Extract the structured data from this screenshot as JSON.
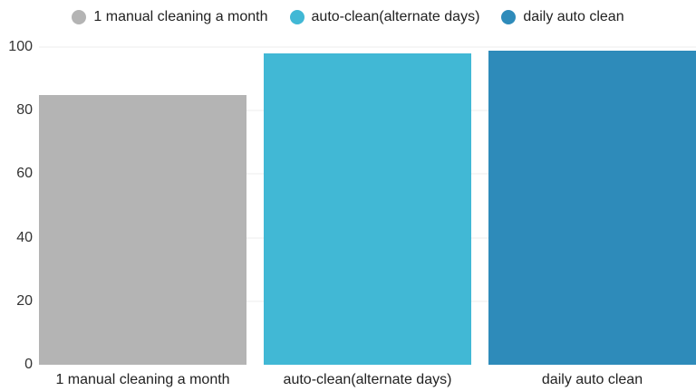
{
  "legend": {
    "items": [
      {
        "label": "1 manual cleaning a month",
        "color": "#b4b4b4"
      },
      {
        "label": "auto-clean(alternate days)",
        "color": "#41b8d5"
      },
      {
        "label": "daily auto clean",
        "color": "#2e8bba"
      }
    ]
  },
  "chart_data": {
    "type": "bar",
    "categories": [
      "1 manual cleaning a month",
      "auto-clean(alternate days)",
      "daily auto clean"
    ],
    "values": [
      85,
      98,
      99
    ],
    "colors": [
      "#b4b4b4",
      "#41b8d5",
      "#2e8bba"
    ],
    "title": "",
    "xlabel": "",
    "ylabel": "",
    "ylim": [
      0,
      100
    ],
    "yticks": [
      0,
      20,
      40,
      60,
      80,
      100
    ],
    "grid": true,
    "gridline_color": "#ececec",
    "legend_position": "top",
    "background": "#ffffff",
    "text_color": "#222222"
  }
}
